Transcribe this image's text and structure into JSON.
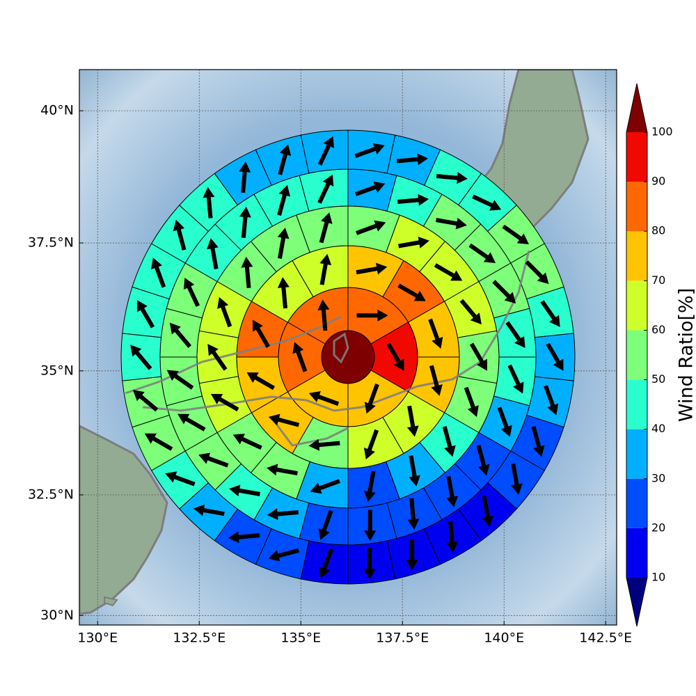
{
  "chart_data": {
    "type": "polar_sector_map",
    "projection": "mercator",
    "xlim": [
      129.55,
      142.77
    ],
    "ylim": [
      29.8,
      40.76
    ],
    "xticks": [
      {
        "value": 130,
        "label": "130°E"
      },
      {
        "value": 132.5,
        "label": "132.5°E"
      },
      {
        "value": 135,
        "label": "135°E"
      },
      {
        "value": 137.5,
        "label": "137.5°E"
      },
      {
        "value": 140,
        "label": "140°E"
      },
      {
        "value": 142.5,
        "label": "142.5°E"
      }
    ],
    "yticks": [
      {
        "value": 30,
        "label": "30°N"
      },
      {
        "value": 32.5,
        "label": "32.5°N"
      },
      {
        "value": 35,
        "label": "35°N"
      },
      {
        "value": 37.5,
        "label": "37.5°N"
      },
      {
        "value": 40,
        "label": "40°N"
      }
    ],
    "grid": true,
    "center_value": 105,
    "rings": [
      {
        "values": [
          85,
          95,
          75,
          75,
          85,
          85
        ],
        "directions": [
          90,
          150,
          200,
          290,
          340,
          355
        ]
      },
      {
        "values": [
          75,
          85,
          75,
          75,
          65,
          65,
          55,
          75,
          75,
          85,
          65,
          65
        ],
        "directions": [
          80,
          120,
          160,
          165,
          170,
          200,
          265,
          285,
          300,
          330,
          355,
          10
        ]
      },
      {
        "values": [
          55,
          65,
          65,
          65,
          55,
          55,
          45,
          35,
          25,
          35,
          55,
          55,
          65,
          65,
          65,
          55,
          55,
          55
        ],
        "directions": [
          70,
          80,
          120,
          140,
          150,
          160,
          165,
          170,
          190,
          250,
          280,
          295,
          300,
          325,
          340,
          355,
          10,
          15
        ]
      },
      {
        "values": [
          35,
          45,
          55,
          55,
          55,
          45,
          45,
          35,
          25,
          25,
          25,
          25,
          25,
          35,
          45,
          55,
          55,
          55,
          55,
          55,
          45,
          45,
          45,
          45
        ],
        "directions": [
          70,
          85,
          100,
          125,
          135,
          145,
          155,
          160,
          165,
          170,
          175,
          180,
          200,
          265,
          280,
          290,
          300,
          305,
          320,
          335,
          350,
          5,
          15,
          25
        ]
      },
      {
        "values": [
          35,
          35,
          45,
          45,
          55,
          55,
          45,
          35,
          35,
          25,
          25,
          15,
          15,
          15,
          15,
          15,
          25,
          25,
          35,
          45,
          55,
          55,
          45,
          45,
          45,
          45,
          45,
          35,
          35,
          35
        ],
        "directions": [
          70,
          85,
          95,
          115,
          125,
          135,
          145,
          150,
          160,
          165,
          170,
          170,
          175,
          180,
          180,
          200,
          255,
          265,
          280,
          290,
          300,
          310,
          320,
          330,
          340,
          345,
          355,
          5,
          15,
          25
        ]
      }
    ],
    "colorbar": {
      "label": "Wind Ratio[%]",
      "levels": [
        10,
        20,
        30,
        40,
        50,
        60,
        70,
        80,
        90,
        100
      ],
      "colors": [
        "#0000f1",
        "#004cff",
        "#00b0ff",
        "#29ffce",
        "#7dff7a",
        "#ceff29",
        "#ffc400",
        "#ff6800",
        "#f10800"
      ],
      "under": "#00007f",
      "over": "#7f0000"
    }
  }
}
